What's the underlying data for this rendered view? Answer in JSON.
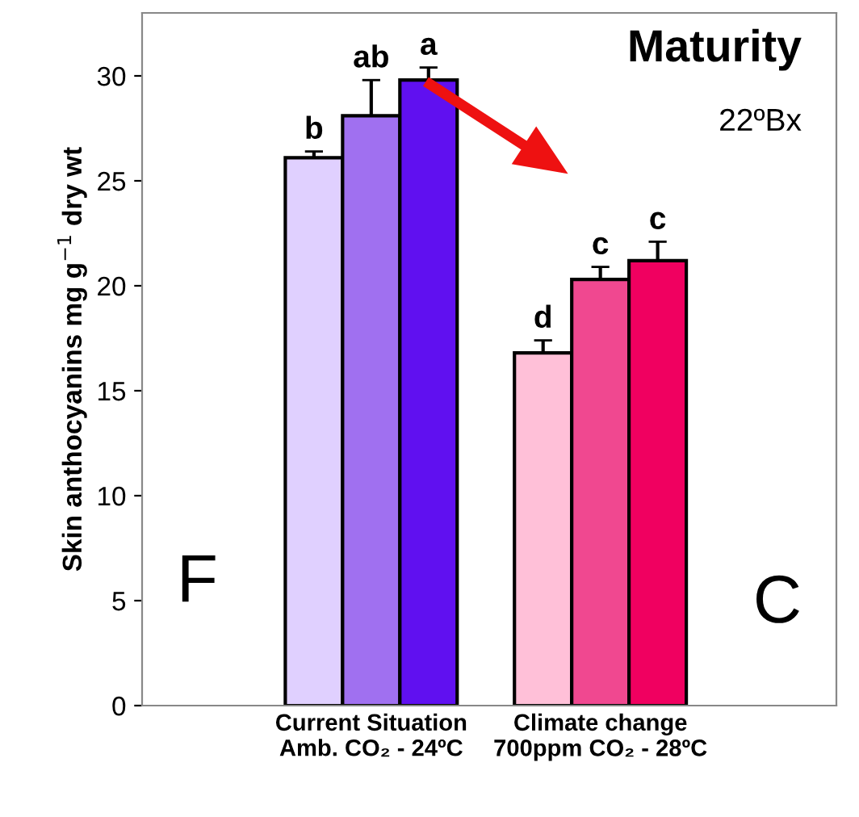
{
  "chart_data": {
    "type": "bar",
    "ylabel": "Skin anthocyanins mg g$^{−1}$ dry wt",
    "categories": [
      "Current Situation\nAmb. CO₂ - 24ºC",
      "Climate change\n700ppm CO₂ - 28ºC"
    ],
    "series": [
      {
        "colors": [
          "#e0d0ff",
          "#ffc0d8"
        ],
        "values": [
          26.1,
          16.8
        ],
        "errors": [
          0.3,
          0.6
        ],
        "value_labels": [
          "b",
          "d"
        ]
      },
      {
        "colors": [
          "#a070f0",
          "#f04890"
        ],
        "values": [
          28.1,
          20.3
        ],
        "errors": [
          1.7,
          0.6
        ],
        "value_labels": [
          "ab",
          "c"
        ]
      },
      {
        "colors": [
          "#6010f0",
          "#f00060"
        ],
        "values": [
          29.8,
          21.2
        ],
        "errors": [
          0.6,
          0.9
        ],
        "value_labels": [
          "a",
          "c"
        ]
      }
    ],
    "ylim": [
      0,
      33
    ],
    "yticks": [
      0,
      5,
      10,
      15,
      20,
      25,
      30
    ],
    "grid": false,
    "legend": false,
    "annotations": [
      "Maturity",
      "22ºBx",
      "F",
      "C"
    ]
  }
}
